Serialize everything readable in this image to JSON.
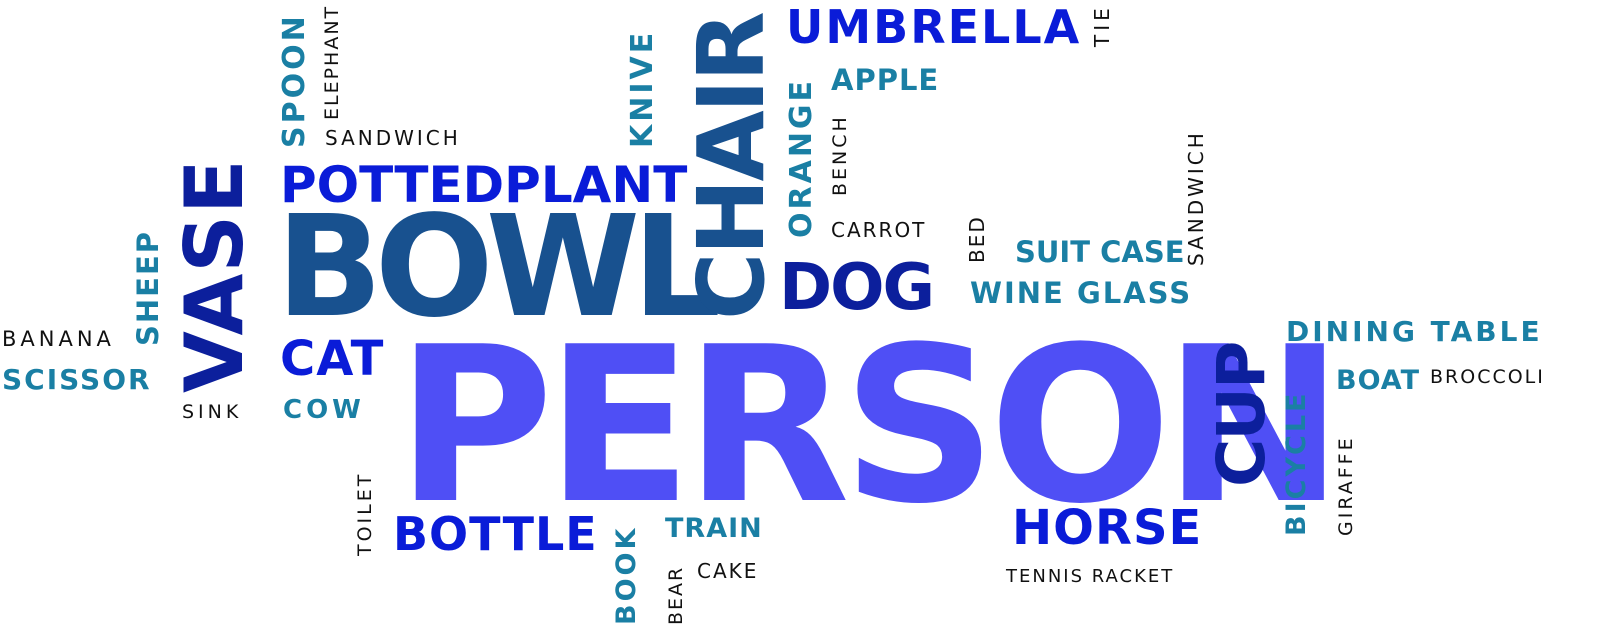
{
  "colors": {
    "person": "#4f4ff5",
    "royal": "#0a1cd8",
    "navy": "#0c1f9c",
    "steel": "#18518f",
    "teal": "#1a7fa4",
    "black": "#111111",
    "background": "#ffffff"
  },
  "words": {
    "person": "PERSON",
    "bowl": "BOWL",
    "chair": "CHAIR",
    "vase": "VASE",
    "cup": "CUP",
    "dog": "DOG",
    "umbrella": "UMBRELLA",
    "pottedplant": "POTTEDPLANT",
    "horse": "HORSE",
    "bottle": "BOTTLE",
    "cat": "CAT",
    "dining_table": "DINING TABLE",
    "wine_glass": "WINE GLASS",
    "suit_case": "SUIT CASE",
    "apple": "APPLE",
    "orange": "ORANGE",
    "knive": "KNIVE",
    "spoon": "SPOON",
    "sheep": "SHEEP",
    "scissor": "SCISSOR",
    "cow": "COW",
    "boat": "BOAT",
    "bicycle": "BICYCLE",
    "train": "TRAIN",
    "book": "BOOK",
    "banana": "BANANA",
    "sink": "SINK",
    "elephant": "ELEPHANT",
    "sandwich_h": "SANDWICH",
    "sandwich_v": "SANDWICH",
    "bench": "BENCH",
    "carrot": "CARROT",
    "bed": "BED",
    "tie": "TIE",
    "broccoli": "BROCCOLI",
    "giraffe": "GIRAFFE",
    "toilet": "TOILET",
    "bear": "BEAR",
    "cake": "CAKE",
    "tennis_racket": "TENNIS RACKET"
  }
}
